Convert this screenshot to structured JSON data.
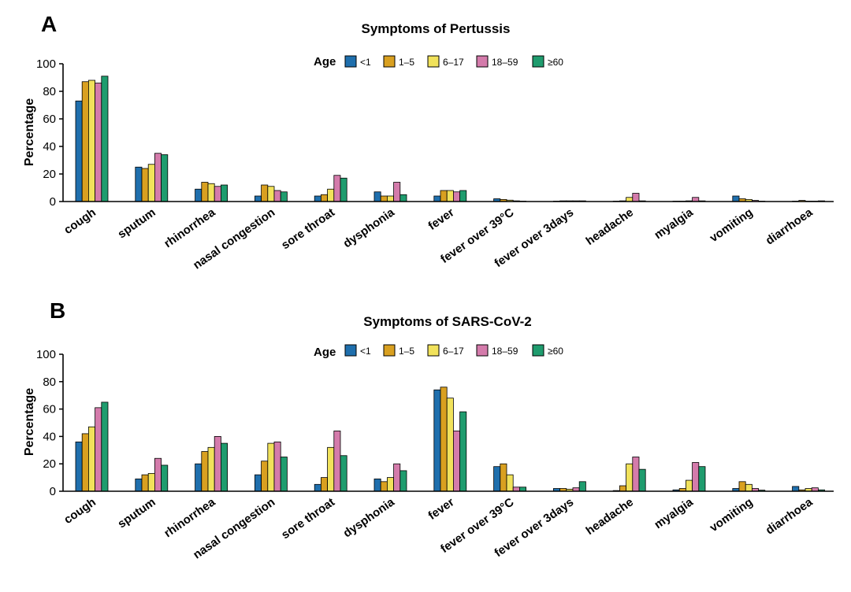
{
  "chart_data": [
    {
      "type": "bar",
      "panel": "A",
      "title": "Symptoms of Pertussis",
      "xlabel": "",
      "ylabel": "Percentage",
      "ylim": [
        0,
        100
      ],
      "yticks": [
        0,
        20,
        40,
        60,
        80,
        100
      ],
      "legend_title": "Age",
      "legend_position": "top",
      "categories": [
        "cough",
        "sputum",
        "rhinorrhea",
        "nasal congestion",
        "sore throat",
        "dysphonia",
        "fever",
        "fever over 39°C",
        "fever over 3days",
        "headache",
        "myalgia",
        "vomiting",
        "diarrhoea"
      ],
      "series": [
        {
          "name": "<1",
          "color": "#1f6fad",
          "values": [
            73,
            25,
            9,
            4,
            4,
            7,
            4,
            2,
            0.3,
            0.3,
            0.3,
            4,
            0.3
          ]
        },
        {
          "name": "1–5",
          "color": "#d9a020",
          "values": [
            87,
            24,
            14,
            12,
            5,
            4,
            8,
            1.5,
            0.5,
            0.5,
            0.3,
            2,
            0.8
          ]
        },
        {
          "name": "6–17",
          "color": "#f1e25b",
          "values": [
            88,
            27,
            13,
            11,
            9,
            4,
            8,
            1,
            0.5,
            3,
            0.5,
            1.5,
            0.3
          ]
        },
        {
          "name": "18–59",
          "color": "#d47bab",
          "values": [
            86,
            35,
            11,
            8,
            19,
            14,
            7,
            0.5,
            0.5,
            6,
            3,
            0.8,
            0.3
          ]
        },
        {
          "name": "≥60",
          "color": "#1f9c6e",
          "values": [
            91,
            34,
            12,
            7,
            17,
            5,
            8,
            0.3,
            0.5,
            0.5,
            0.5,
            0.3,
            0.5
          ]
        }
      ]
    },
    {
      "type": "bar",
      "panel": "B",
      "title": "Symptoms of SARS-CoV-2",
      "xlabel": "",
      "ylabel": "Percentage",
      "ylim": [
        0,
        100
      ],
      "yticks": [
        0,
        20,
        40,
        60,
        80,
        100
      ],
      "legend_title": "Age",
      "legend_position": "top",
      "categories": [
        "cough",
        "sputum",
        "rhinorrhea",
        "nasal congestion",
        "sore throat",
        "dysphonia",
        "fever",
        "fever over 39°C",
        "fever over 3days",
        "headache",
        "myalgia",
        "vomiting",
        "diarrhoea"
      ],
      "series": [
        {
          "name": "<1",
          "color": "#1f6fad",
          "values": [
            36,
            9,
            20,
            12,
            5,
            9,
            74,
            18,
            2,
            0.5,
            1,
            2,
            3.5
          ]
        },
        {
          "name": "1–5",
          "color": "#d9a020",
          "values": [
            42,
            12,
            29,
            22,
            10,
            7,
            76,
            20,
            2,
            4,
            2,
            7,
            1
          ]
        },
        {
          "name": "6–17",
          "color": "#f1e25b",
          "values": [
            47,
            13,
            32,
            35,
            32,
            10,
            68,
            12,
            1.5,
            20,
            8,
            5,
            2
          ]
        },
        {
          "name": "18–59",
          "color": "#d47bab",
          "values": [
            61,
            24,
            40,
            36,
            44,
            20,
            44,
            3,
            2.5,
            25,
            21,
            2,
            2.5
          ]
        },
        {
          "name": "≥60",
          "color": "#1f9c6e",
          "values": [
            65,
            19,
            35,
            25,
            26,
            15,
            58,
            3,
            7,
            16,
            18,
            0.8,
            1
          ]
        }
      ]
    }
  ]
}
